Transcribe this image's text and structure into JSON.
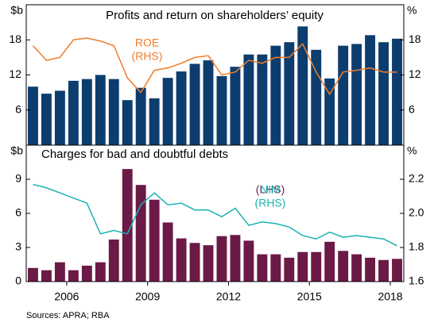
{
  "chart_data": [
    {
      "type": "combo",
      "title": "Profits and return on shareholders’ equity",
      "ylabel": "$b",
      "y2label": "%",
      "x": [
        2004.75,
        2005.25,
        2005.75,
        2006.25,
        2006.75,
        2007.25,
        2007.75,
        2008.25,
        2008.75,
        2009.25,
        2009.75,
        2010.25,
        2010.75,
        2011.25,
        2011.75,
        2012.25,
        2012.75,
        2013.25,
        2013.75,
        2014.25,
        2014.75,
        2015.25,
        2015.75,
        2016.25,
        2016.75,
        2017.25,
        2017.75,
        2018.25
      ],
      "xlim": [
        2004.5,
        2018.5
      ],
      "ylim": [
        0,
        24
      ],
      "yticks": [
        6,
        12,
        18
      ],
      "y2lim": [
        0,
        24
      ],
      "y2ticks": [
        6,
        12,
        18
      ],
      "series": [
        {
          "kind": "bar",
          "color": "#0c3d6e",
          "values": [
            10,
            8.8,
            9.3,
            11,
            11.3,
            12,
            11.3,
            7.7,
            9.8,
            8,
            11.5,
            12.6,
            13.9,
            14.5,
            11.8,
            13.4,
            15.5,
            15.5,
            17,
            17.6,
            20.3,
            16.3,
            11.4,
            17,
            17.3,
            18.8,
            17.6,
            18.2
          ]
        },
        {
          "kind": "line",
          "axis": "y2",
          "color": "#f07c2a",
          "label": [
            "ROE",
            "(RHS)"
          ],
          "values": [
            17,
            14.5,
            15,
            18,
            18.3,
            17.8,
            17,
            11.5,
            9,
            12.8,
            13.2,
            14,
            15,
            15.3,
            12,
            12.5,
            14.5,
            14,
            15,
            15,
            17.3,
            12.5,
            8.7,
            12.5,
            12.8,
            13.2,
            12.5,
            12.5
          ]
        }
      ]
    },
    {
      "type": "combo",
      "title": "Charges for bad and doubtful debts",
      "ylabel": "$b",
      "y2label": "%",
      "x": [
        2004.75,
        2005.25,
        2005.75,
        2006.25,
        2006.75,
        2007.25,
        2007.75,
        2008.25,
        2008.75,
        2009.25,
        2009.75,
        2010.25,
        2010.75,
        2011.25,
        2011.75,
        2012.25,
        2012.75,
        2013.25,
        2013.75,
        2014.25,
        2014.75,
        2015.25,
        2015.75,
        2016.25,
        2016.75,
        2017.25,
        2017.75,
        2018.25
      ],
      "xlim": [
        2004.5,
        2018.5
      ],
      "xticks": [
        2006,
        2009,
        2012,
        2015,
        2018
      ],
      "ylim": [
        0,
        12
      ],
      "yticks": [
        0,
        3,
        6,
        9
      ],
      "y2lim": [
        1.6,
        2.4
      ],
      "y2ticks": [
        1.6,
        1.8,
        {
          "value": 2,
          "label": "2.0"
        },
        2.2
      ],
      "series": [
        {
          "kind": "bar",
          "color": "#6b1a47",
          "label": [
            "(LHS)"
          ],
          "values": [
            1.2,
            1,
            1.7,
            1,
            1.4,
            1.7,
            3.7,
            9.9,
            8.5,
            7.2,
            5.2,
            3.8,
            3.4,
            3.2,
            4,
            4.1,
            3.6,
            2.4,
            2.4,
            2.1,
            2.6,
            2.6,
            3.5,
            2.7,
            2.4,
            2.1,
            1.9,
            2.0
          ]
        },
        {
          "kind": "line",
          "axis": "y2",
          "color": "#1ab2b0",
          "label": [
            "NIM",
            "(RHS)"
          ],
          "values": [
            2.17,
            2.15,
            2.12,
            2.09,
            2.06,
            1.88,
            1.9,
            1.88,
            2.05,
            2.12,
            2.05,
            2.06,
            2.02,
            2.02,
            1.98,
            2.03,
            1.93,
            1.95,
            1.94,
            1.92,
            1.87,
            1.85,
            1.89,
            1.86,
            1.87,
            1.86,
            1.85,
            1.81
          ]
        }
      ]
    }
  ],
  "source": "Sources: APRA; RBA"
}
